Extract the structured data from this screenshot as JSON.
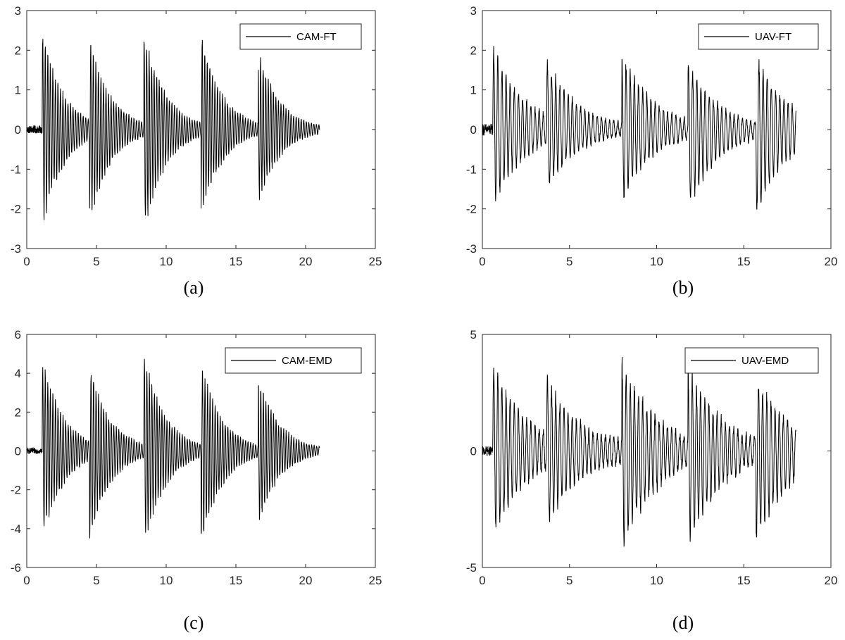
{
  "chart_data": [
    {
      "type": "line",
      "caption": "(a)",
      "legend": "CAM-FT",
      "legend_position": "top-right",
      "xlim": [
        0,
        25
      ],
      "ylim": [
        -3,
        3
      ],
      "xticks": [
        "0",
        "5",
        "10",
        "15",
        "20",
        "25"
      ],
      "yticks": [
        "-3",
        "-2",
        "-1",
        "0",
        "1",
        "2",
        "3"
      ],
      "grid": false,
      "color": "#000000",
      "signal": {
        "t_end": 21.0,
        "onset": 1.1,
        "pre_noise": 0.1,
        "freq_hz": 5.5,
        "decay_per_s": 0.65,
        "floor": 0.05,
        "bursts": [
          {
            "t": 1.1,
            "peak_pos": 2.62,
            "peak_neg": -2.65
          },
          {
            "t": 4.5,
            "peak_pos": 2.45,
            "peak_neg": -2.45
          },
          {
            "t": 8.4,
            "peak_pos": 2.68,
            "peak_neg": -2.72
          },
          {
            "t": 12.5,
            "peak_pos": 2.55,
            "peak_neg": -2.35
          },
          {
            "t": 16.6,
            "peak_pos": 2.1,
            "peak_neg": -1.95
          }
        ]
      }
    },
    {
      "type": "line",
      "caption": "(b)",
      "legend": "UAV-FT",
      "legend_position": "top-right",
      "xlim": [
        0,
        20
      ],
      "ylim": [
        -3,
        3
      ],
      "xticks": [
        "0",
        "5",
        "10",
        "15",
        "20"
      ],
      "yticks": [
        "-3",
        "-2",
        "-1",
        "0",
        "1",
        "2",
        "3"
      ],
      "grid": false,
      "color": "#000000",
      "signal": {
        "t_end": 18.0,
        "onset": 0.6,
        "pre_noise": 0.15,
        "freq_hz": 4.2,
        "decay_per_s": 0.55,
        "floor": 0.2,
        "bursts": [
          {
            "t": 0.8,
            "peak_pos": 2.0,
            "peak_neg": -1.85
          },
          {
            "t": 3.7,
            "peak_pos": 1.85,
            "peak_neg": -1.6
          },
          {
            "t": 8.0,
            "peak_pos": 2.1,
            "peak_neg": -1.9
          },
          {
            "t": 11.8,
            "peak_pos": 1.8,
            "peak_neg": -2.12
          },
          {
            "t": 15.7,
            "peak_pos": 2.0,
            "peak_neg": -2.25
          }
        ]
      }
    },
    {
      "type": "line",
      "caption": "(c)",
      "legend": "CAM-EMD",
      "legend_position": "top-right",
      "xlim": [
        0,
        25
      ],
      "ylim": [
        -6,
        6
      ],
      "xticks": [
        "0",
        "5",
        "10",
        "15",
        "20",
        "25"
      ],
      "yticks": [
        "-6",
        "-4",
        "-2",
        "0",
        "2",
        "4",
        "6"
      ],
      "grid": false,
      "color": "#000000",
      "signal": {
        "t_end": 21.0,
        "onset": 1.1,
        "pre_noise": 0.15,
        "freq_hz": 5.5,
        "decay_per_s": 0.65,
        "floor": 0.1,
        "bursts": [
          {
            "t": 1.1,
            "peak_pos": 5.05,
            "peak_neg": -4.85
          },
          {
            "t": 4.5,
            "peak_pos": 4.7,
            "peak_neg": -4.75
          },
          {
            "t": 8.4,
            "peak_pos": 5.3,
            "peak_neg": -5.25
          },
          {
            "t": 12.5,
            "peak_pos": 4.75,
            "peak_neg": -5.1
          },
          {
            "t": 16.6,
            "peak_pos": 4.05,
            "peak_neg": -4.0
          }
        ]
      }
    },
    {
      "type": "line",
      "caption": "(d)",
      "legend": "UAV-EMD",
      "legend_position": "top-right",
      "xlim": [
        0,
        20
      ],
      "ylim": [
        -5,
        5
      ],
      "xticks": [
        "0",
        "5",
        "10",
        "15",
        "20"
      ],
      "yticks": [
        "-5",
        "0",
        "5"
      ],
      "grid": false,
      "color": "#000000",
      "signal": {
        "t_end": 18.0,
        "onset": 0.6,
        "pre_noise": 0.2,
        "freq_hz": 4.2,
        "decay_per_s": 0.5,
        "floor": 0.6,
        "bursts": [
          {
            "t": 0.8,
            "peak_pos": 3.6,
            "peak_neg": -3.5
          },
          {
            "t": 3.7,
            "peak_pos": 3.3,
            "peak_neg": -3.4
          },
          {
            "t": 8.0,
            "peak_pos": 4.2,
            "peak_neg": -4.55
          },
          {
            "t": 11.8,
            "peak_pos": 3.8,
            "peak_neg": -4.2
          },
          {
            "t": 15.7,
            "peak_pos": 3.4,
            "peak_neg": -4.2
          }
        ]
      }
    }
  ]
}
